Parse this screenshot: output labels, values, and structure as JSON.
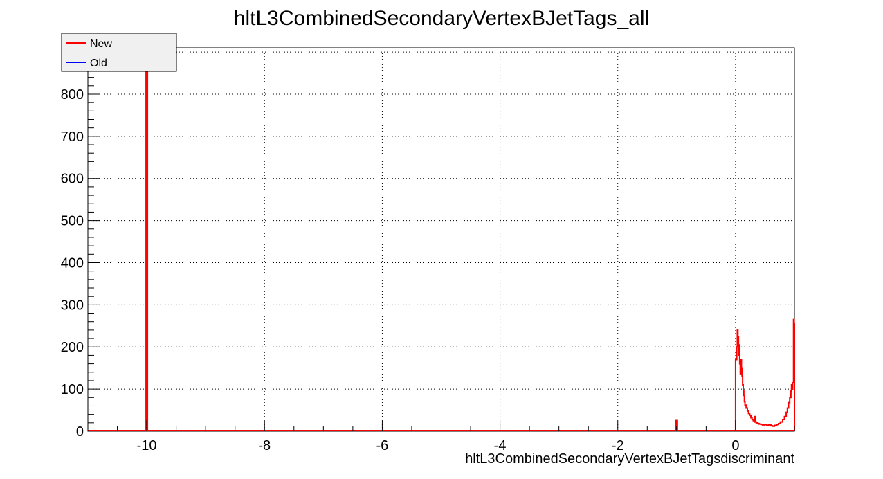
{
  "chart_data": {
    "type": "histogram",
    "title": "hltL3CombinedSecondaryVertexBJetTags_all",
    "xlabel": "hltL3CombinedSecondaryVertexBJetTagsdiscriminant",
    "ylabel": "",
    "xlim": [
      -11,
      1
    ],
    "ylim": [
      0,
      910
    ],
    "xticks": [
      -10,
      -8,
      -6,
      -4,
      -2,
      0
    ],
    "yticks": [
      0,
      100,
      200,
      300,
      400,
      500,
      600,
      700,
      800,
      900
    ],
    "grid": true,
    "legend_position": "top-left",
    "series": [
      {
        "name": "New",
        "color": "#ff0000",
        "points": [
          [
            -10.0,
            920
          ],
          [
            -1.0,
            27
          ],
          [
            0.01,
            170
          ],
          [
            0.02,
            200
          ],
          [
            0.03,
            240
          ],
          [
            0.04,
            225
          ],
          [
            0.05,
            205
          ],
          [
            0.06,
            180
          ],
          [
            0.07,
            160
          ],
          [
            0.08,
            135
          ],
          [
            0.09,
            170
          ],
          [
            0.1,
            150
          ],
          [
            0.11,
            130
          ],
          [
            0.12,
            110
          ],
          [
            0.13,
            95
          ],
          [
            0.14,
            85
          ],
          [
            0.15,
            70
          ],
          [
            0.16,
            62
          ],
          [
            0.18,
            55
          ],
          [
            0.2,
            48
          ],
          [
            0.22,
            42
          ],
          [
            0.24,
            38
          ],
          [
            0.26,
            32
          ],
          [
            0.28,
            28
          ],
          [
            0.3,
            25
          ],
          [
            0.32,
            35
          ],
          [
            0.33,
            22
          ],
          [
            0.35,
            20
          ],
          [
            0.38,
            18
          ],
          [
            0.4,
            17
          ],
          [
            0.43,
            16
          ],
          [
            0.46,
            15
          ],
          [
            0.5,
            16
          ],
          [
            0.53,
            14
          ],
          [
            0.56,
            15
          ],
          [
            0.6,
            13
          ],
          [
            0.63,
            12
          ],
          [
            0.66,
            14
          ],
          [
            0.7,
            16
          ],
          [
            0.73,
            18
          ],
          [
            0.76,
            22
          ],
          [
            0.8,
            28
          ],
          [
            0.83,
            35
          ],
          [
            0.86,
            45
          ],
          [
            0.88,
            55
          ],
          [
            0.9,
            68
          ],
          [
            0.92,
            80
          ],
          [
            0.94,
            95
          ],
          [
            0.95,
            110
          ],
          [
            0.96,
            100
          ],
          [
            0.97,
            115
          ],
          [
            0.985,
            265
          ],
          [
            0.995,
            255
          ]
        ]
      },
      {
        "name": "Old",
        "color": "#0000ff",
        "points": []
      }
    ]
  }
}
